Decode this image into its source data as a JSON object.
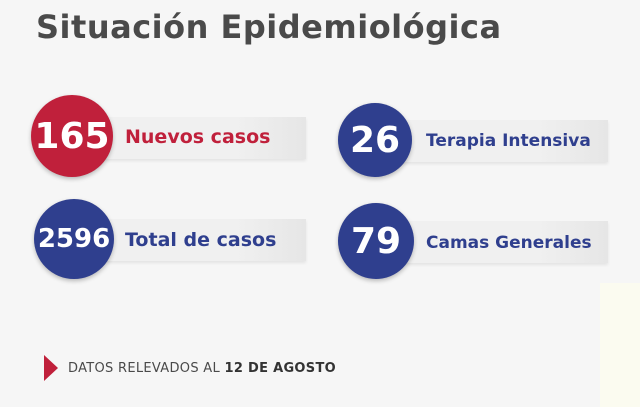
{
  "title": "Situación Epidemiológica",
  "colors": {
    "red": "#c0203b",
    "blue": "#2f3f8e",
    "text_gray": "#4a4a4a"
  },
  "stats": {
    "nuevos_casos": {
      "value": "165",
      "label": "Nuevos casos"
    },
    "total_casos": {
      "value": "2596",
      "label": "Total de casos"
    },
    "terapia_intensiva": {
      "value": "26",
      "label": "Terapia Intensiva"
    },
    "camas_generales": {
      "value": "79",
      "label": "Camas Generales"
    }
  },
  "footer": {
    "prefix": "DATOS RELEVADOS AL ",
    "date": "12 DE AGOSTO"
  }
}
